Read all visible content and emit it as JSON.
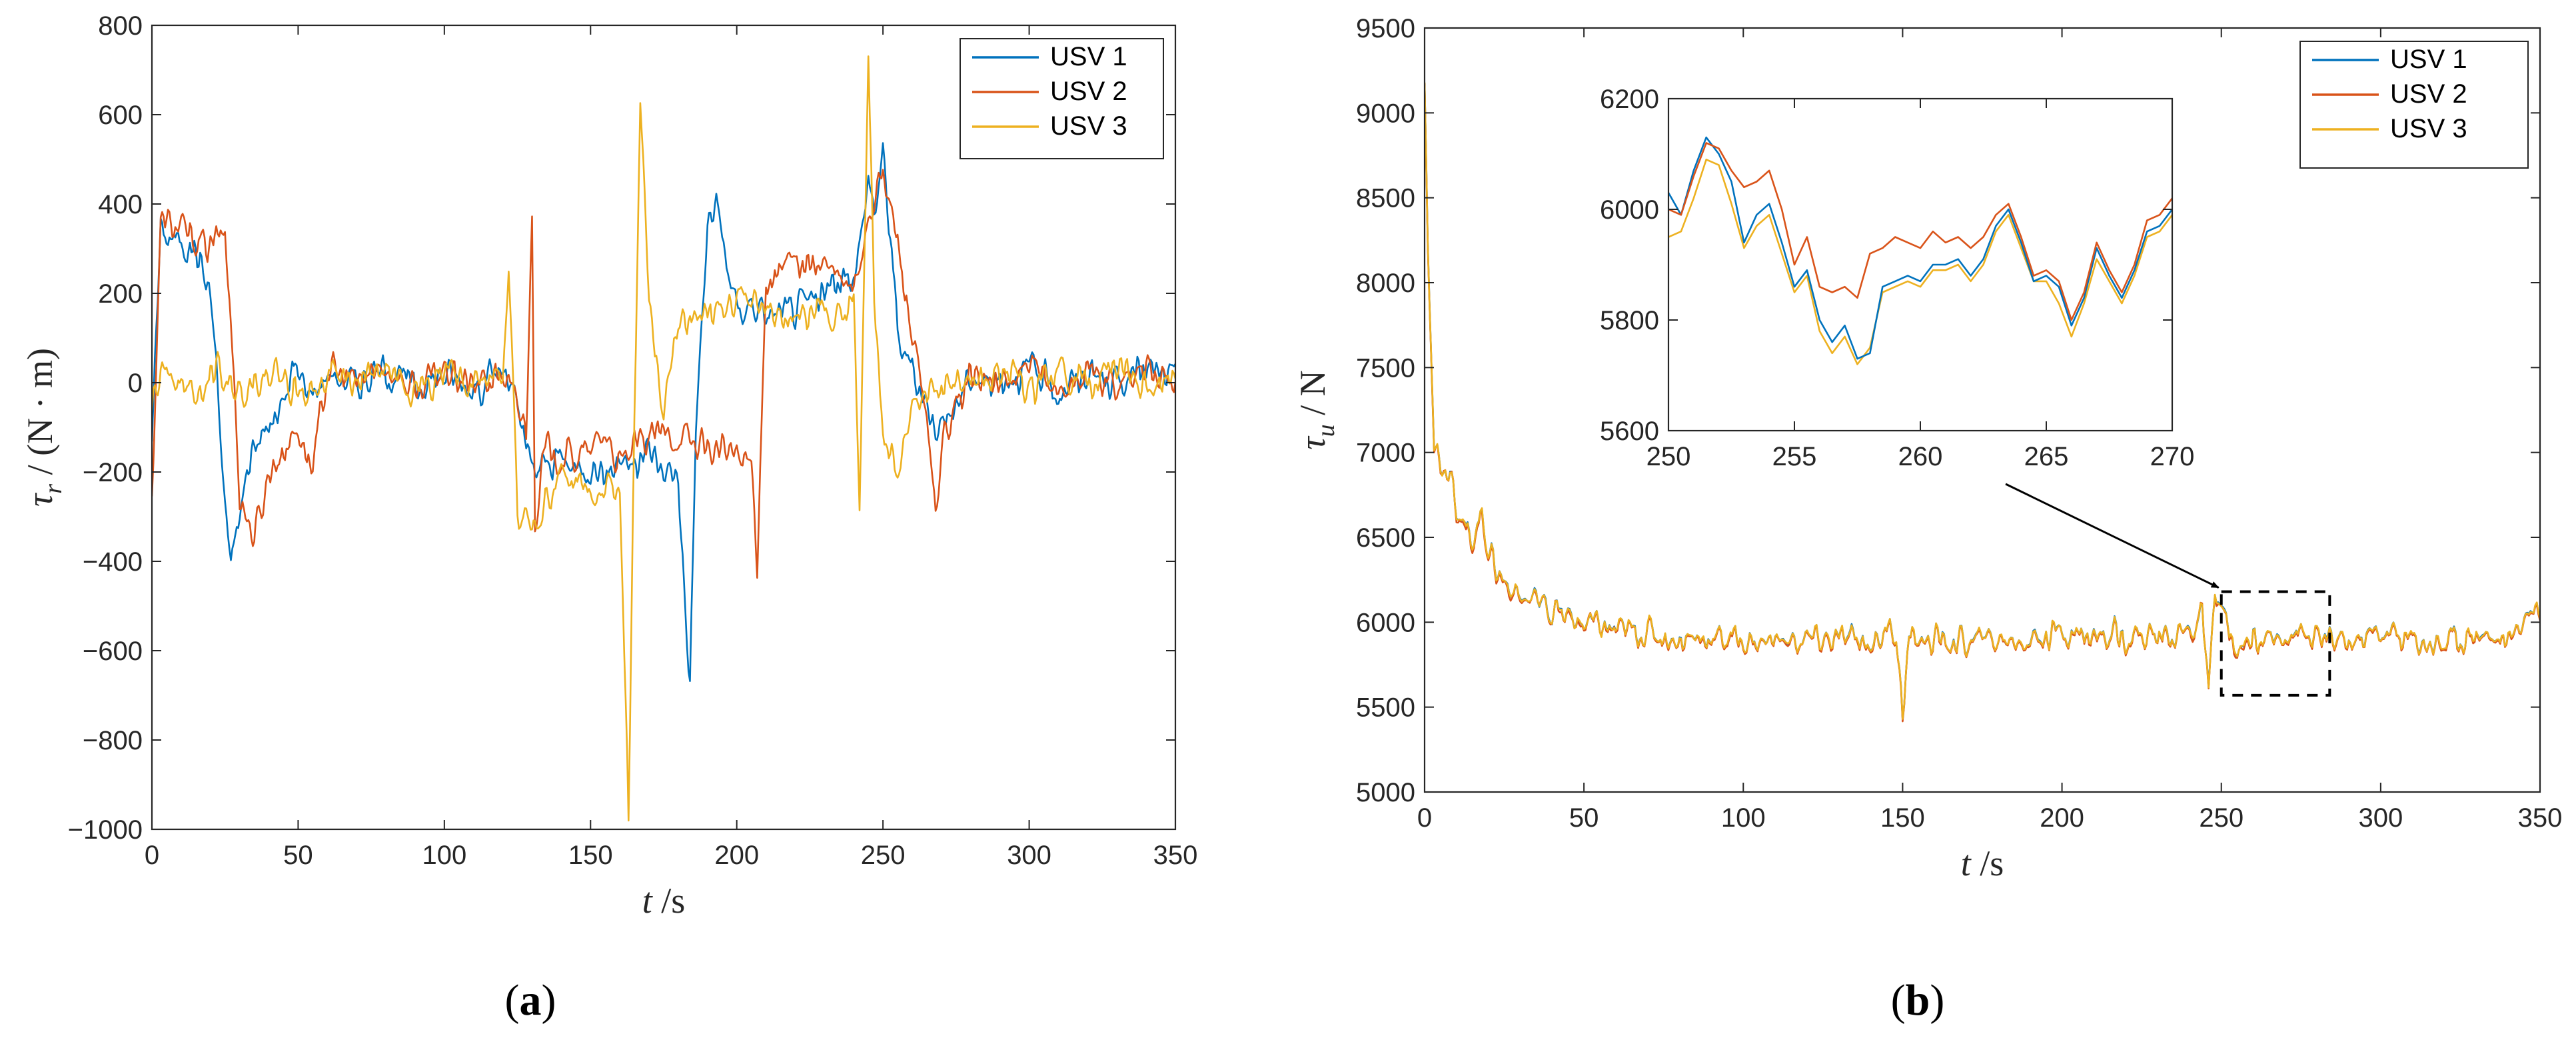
{
  "chart_data": [
    {
      "id": "a",
      "panel_label": "(a)",
      "panel_letter": "a",
      "type": "line",
      "xlabel": "t /s",
      "xlabel_var": "t",
      "xlabel_unit": " /s",
      "ylabel": "τr / (N · m)",
      "ylabel_sym": "τ",
      "ylabel_sub": "r",
      "ylabel_unit": " / (N · m)",
      "xlim": [
        0,
        350
      ],
      "ylim": [
        -1000,
        800
      ],
      "xticks": [
        0,
        50,
        100,
        150,
        200,
        250,
        300,
        350
      ],
      "yticks": [
        -1000,
        -800,
        -600,
        -400,
        -200,
        0,
        200,
        400,
        600,
        800
      ],
      "ytick_labels": [
        "−1000",
        "−800",
        "−600",
        "−400",
        "−200",
        "0",
        "200",
        "400",
        "600",
        "800"
      ],
      "legend_position": "top-right",
      "series": [
        {
          "name": "USV 1",
          "color": "#0072BD",
          "x": [
            0,
            3,
            8,
            15,
            20,
            22,
            25,
            27,
            30,
            34,
            40,
            45,
            48,
            55,
            60,
            70,
            80,
            90,
            100,
            110,
            120,
            125,
            127,
            130,
            135,
            140,
            145,
            150,
            155,
            160,
            165,
            170,
            175,
            180,
            183,
            184,
            186,
            190,
            193,
            200,
            205,
            210,
            220,
            230,
            240,
            243,
            245,
            247,
            250,
            253,
            255,
            260,
            265,
            270,
            275,
            280,
            285,
            290,
            300,
            310,
            320,
            330,
            340,
            350
          ],
          "y": [
            -100,
            340,
            320,
            300,
            200,
            50,
            -300,
            -390,
            -300,
            -150,
            -100,
            -50,
            30,
            -20,
            20,
            0,
            30,
            -10,
            20,
            -10,
            30,
            -60,
            -120,
            -200,
            -180,
            -170,
            -200,
            -180,
            -210,
            -160,
            -190,
            -150,
            -200,
            -200,
            -580,
            -680,
            -100,
            350,
            390,
            160,
            180,
            150,
            160,
            200,
            250,
            340,
            470,
            380,
            510,
            300,
            100,
            30,
            -50,
            -100,
            -50,
            20,
            0,
            10,
            30,
            -20,
            20,
            0,
            30,
            0
          ]
        },
        {
          "name": "USV 2",
          "color": "#D95319",
          "x": [
            0,
            3,
            8,
            15,
            20,
            25,
            28,
            30,
            35,
            40,
            45,
            50,
            55,
            60,
            70,
            80,
            90,
            100,
            110,
            120,
            125,
            128,
            130,
            131,
            133,
            135,
            140,
            150,
            155,
            160,
            170,
            180,
            190,
            200,
            205,
            207,
            208,
            210,
            215,
            220,
            230,
            240,
            245,
            250,
            255,
            260,
            265,
            268,
            270,
            275,
            280,
            290,
            300,
            310,
            320,
            330,
            340,
            350
          ],
          "y": [
            -260,
            360,
            350,
            320,
            300,
            340,
            20,
            -250,
            -350,
            -200,
            -150,
            -100,
            -200,
            30,
            0,
            40,
            -20,
            30,
            -10,
            20,
            -60,
            -100,
            380,
            -300,
            -200,
            -150,
            -170,
            -160,
            -110,
            -190,
            -120,
            -120,
            -150,
            -160,
            -180,
            -430,
            -150,
            220,
            250,
            270,
            260,
            200,
            380,
            460,
            320,
            100,
            -100,
            -300,
            -150,
            -60,
            20,
            -10,
            30,
            -20,
            20,
            0,
            30,
            0
          ]
        },
        {
          "name": "USV 3",
          "color": "#EDB120",
          "x": [
            0,
            5,
            10,
            15,
            20,
            30,
            40,
            50,
            60,
            70,
            80,
            90,
            100,
            110,
            120,
            122,
            125,
            130,
            140,
            150,
            160,
            163,
            165,
            167,
            170,
            172,
            175,
            180,
            185,
            190,
            200,
            210,
            220,
            230,
            240,
            242,
            245,
            247,
            250,
            255,
            260,
            270,
            280,
            290,
            300,
            310,
            320,
            330,
            340,
            350
          ],
          "y": [
            -50,
            50,
            0,
            -30,
            30,
            -20,
            30,
            -20,
            20,
            0,
            30,
            -20,
            20,
            0,
            30,
            260,
            -300,
            -320,
            -210,
            -240,
            -230,
            -960,
            -100,
            650,
            200,
            40,
            -60,
            120,
            140,
            160,
            180,
            160,
            140,
            160,
            180,
            -290,
            720,
            200,
            -150,
            -190,
            -40,
            0,
            -20,
            30,
            -20,
            20,
            0,
            30,
            0,
            20
          ]
        }
      ]
    },
    {
      "id": "b",
      "panel_label": "(b)",
      "panel_letter": "b",
      "type": "line",
      "xlabel": "t /s",
      "xlabel_var": "t",
      "xlabel_unit": " /s",
      "ylabel": "τu / N",
      "ylabel_sym": "τ",
      "ylabel_sub": "u",
      "ylabel_unit": " / N",
      "xlim": [
        0,
        350
      ],
      "ylim": [
        5000,
        9500
      ],
      "xticks": [
        0,
        50,
        100,
        150,
        200,
        250,
        300,
        350
      ],
      "yticks": [
        5000,
        5500,
        6000,
        6500,
        7000,
        7500,
        8000,
        8500,
        9000,
        9500
      ],
      "ytick_labels": [
        "5000",
        "5500",
        "6000",
        "6500",
        "7000",
        "7500",
        "8000",
        "8500",
        "9000",
        "9500"
      ],
      "legend_position": "top-right",
      "annotation": "dashed zoom box over t = 250–284 s, arrow to inset",
      "zoom_box": {
        "xlim": [
          250,
          284
        ],
        "ylim": [
          5570,
          6180
        ]
      },
      "series": [
        {
          "name": "USV 1",
          "color": "#0072BD"
        },
        {
          "name": "USV 2",
          "color": "#D95319"
        },
        {
          "name": "USV 3",
          "color": "#EDB120"
        }
      ],
      "base_curve": {
        "x": [
          0,
          1,
          2,
          3,
          5,
          8,
          10,
          12,
          15,
          18,
          20,
          23,
          25,
          28,
          30,
          35,
          40,
          50,
          60,
          70,
          80,
          90,
          100,
          110,
          120,
          130,
          140,
          148,
          150,
          152,
          160,
          170,
          180,
          190,
          200,
          210,
          220,
          230,
          240,
          244,
          246,
          248,
          250,
          252,
          255,
          260,
          265,
          270,
          280,
          290,
          300,
          310,
          320,
          330,
          340,
          347,
          350
        ],
        "y": [
          9200,
          8300,
          7600,
          7100,
          6950,
          6900,
          6700,
          6550,
          6500,
          6650,
          6450,
          6300,
          6250,
          6200,
          6150,
          6100,
          6050,
          6000,
          5950,
          5950,
          5900,
          5920,
          5900,
          5880,
          5900,
          5900,
          5890,
          5950,
          5470,
          5900,
          5900,
          5880,
          5900,
          5910,
          5930,
          5920,
          5930,
          5920,
          5950,
          6050,
          5580,
          6100,
          6100,
          5950,
          5800,
          5900,
          5860,
          5960,
          5900,
          5880,
          5950,
          5900,
          5880,
          5950,
          5880,
          6100,
          6000
        ]
      }
    },
    {
      "id": "b-inset",
      "type": "line",
      "xlim": [
        250,
        270
      ],
      "ylim": [
        5600,
        6200
      ],
      "xticks": [
        250,
        255,
        260,
        265,
        270
      ],
      "yticks": [
        5600,
        5800,
        6000,
        6200
      ],
      "series": [
        {
          "name": "USV 1",
          "color": "#0072BD",
          "x": [
            250,
            250.5,
            251,
            251.5,
            252,
            252.5,
            253,
            253.5,
            254,
            254.5,
            255,
            255.5,
            256,
            256.5,
            257,
            257.5,
            258,
            258.5,
            259,
            259.5,
            260,
            260.5,
            261,
            261.5,
            262,
            262.5,
            263,
            263.5,
            264,
            264.5,
            265,
            265.5,
            266,
            266.5,
            267,
            267.5,
            268,
            268.5,
            269,
            269.5,
            270
          ],
          "y": [
            6030,
            5990,
            6070,
            6130,
            6100,
            6050,
            5940,
            5990,
            6010,
            5940,
            5860,
            5890,
            5800,
            5760,
            5790,
            5730,
            5740,
            5860,
            5870,
            5880,
            5870,
            5900,
            5900,
            5910,
            5880,
            5910,
            5970,
            6000,
            5940,
            5870,
            5880,
            5860,
            5790,
            5840,
            5930,
            5880,
            5840,
            5890,
            5960,
            5970,
            6000
          ]
        },
        {
          "name": "USV 2",
          "color": "#D95319",
          "x": [
            250,
            250.5,
            251,
            251.5,
            252,
            252.5,
            253,
            253.5,
            254,
            254.5,
            255,
            255.5,
            256,
            256.5,
            257,
            257.5,
            258,
            258.5,
            259,
            259.5,
            260,
            260.5,
            261,
            261.5,
            262,
            262.5,
            263,
            263.5,
            264,
            264.5,
            265,
            265.5,
            266,
            266.5,
            267,
            267.5,
            268,
            268.5,
            269,
            269.5,
            270
          ],
          "y": [
            6000,
            5990,
            6060,
            6120,
            6110,
            6070,
            6040,
            6050,
            6070,
            6000,
            5900,
            5950,
            5860,
            5850,
            5860,
            5840,
            5920,
            5930,
            5950,
            5940,
            5930,
            5960,
            5940,
            5950,
            5930,
            5950,
            5990,
            6010,
            5950,
            5880,
            5890,
            5870,
            5800,
            5850,
            5940,
            5890,
            5850,
            5900,
            5980,
            5990,
            6020
          ]
        },
        {
          "name": "USV 3",
          "color": "#EDB120",
          "x": [
            250,
            250.5,
            251,
            251.5,
            252,
            252.5,
            253,
            253.5,
            254,
            254.5,
            255,
            255.5,
            256,
            256.5,
            257,
            257.5,
            258,
            258.5,
            259,
            259.5,
            260,
            260.5,
            261,
            261.5,
            262,
            262.5,
            263,
            263.5,
            264,
            264.5,
            265,
            265.5,
            266,
            266.5,
            267,
            267.5,
            268,
            268.5,
            269,
            269.5,
            270
          ],
          "y": [
            5950,
            5960,
            6020,
            6090,
            6080,
            6010,
            5930,
            5970,
            5990,
            5920,
            5850,
            5880,
            5780,
            5740,
            5770,
            5720,
            5750,
            5850,
            5860,
            5870,
            5860,
            5890,
            5890,
            5900,
            5870,
            5900,
            5960,
            5990,
            5930,
            5870,
            5870,
            5830,
            5770,
            5830,
            5910,
            5870,
            5830,
            5880,
            5950,
            5960,
            5990
          ]
        }
      ]
    }
  ]
}
